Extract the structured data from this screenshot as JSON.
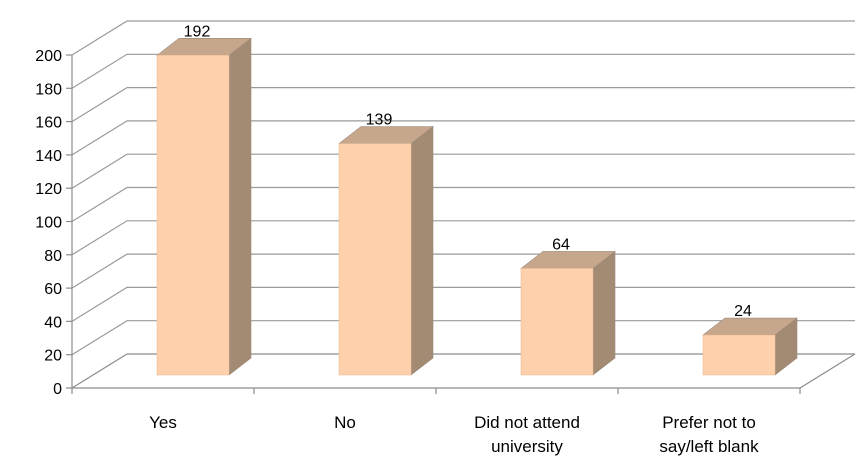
{
  "chart_data": {
    "type": "bar",
    "style": "3d-column",
    "categories": [
      "Yes",
      "No",
      "Did not attend university",
      "Prefer not to say/left blank"
    ],
    "category_lines": [
      [
        "Yes"
      ],
      [
        "No"
      ],
      [
        "Did not attend",
        "university"
      ],
      [
        "Prefer not to",
        "say/left blank"
      ]
    ],
    "values": [
      192,
      139,
      64,
      24
    ],
    "data_labels": [
      "192",
      "139",
      "64",
      "24"
    ],
    "title": "",
    "xlabel": "",
    "ylabel": "",
    "ylim": [
      0,
      200
    ],
    "yticks": [
      0,
      20,
      40,
      60,
      80,
      100,
      120,
      140,
      160,
      180,
      200
    ],
    "grid": true,
    "legend": "none",
    "colors": {
      "bar_front": "#FFD0AC",
      "bar_side": "#A38A72",
      "bar_top": "#C7A78C",
      "bar_edge": "#9C8A7A",
      "gridline": "#9A9A9A"
    }
  }
}
